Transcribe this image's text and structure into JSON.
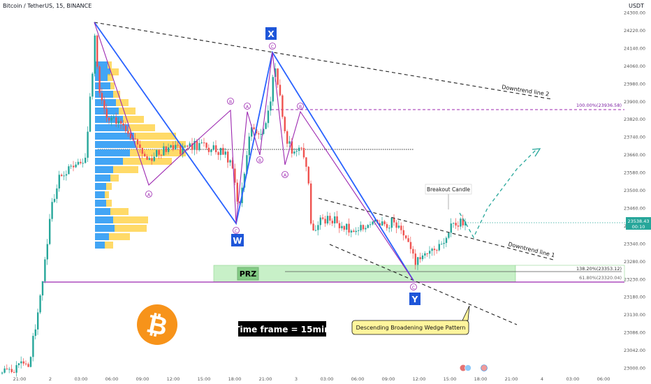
{
  "header": {
    "symbol_line": "Bitcoin / TetherUS, 15, BINANCE",
    "currency": "USDT"
  },
  "price_tag": {
    "price": "23538.43",
    "countdown": "00:10",
    "color": "#26a69a"
  },
  "colors": {
    "up": "#26a69a",
    "down": "#ef5350",
    "pattern_blue": "#2962ff",
    "pattern_purple": "#9c27b0",
    "purple_line": "#9c27b0",
    "prz_fill": "#c8f0c8",
    "profile_blue": "#42a5f5",
    "profile_orange": "#ffca28",
    "btc": "#f7931a"
  },
  "chart_data": {
    "type": "candlestick",
    "title": "Bitcoin / TetherUS, 15, BINANCE",
    "timeframe": "15",
    "y_axis": {
      "unit": "USDT",
      "ticks": [
        24300,
        24220,
        24140,
        24060,
        23980,
        23900,
        23820,
        23740,
        23660,
        23580,
        23500,
        23460,
        23400,
        23340,
        23280,
        23230,
        23180,
        23130,
        23086,
        23042,
        23000
      ],
      "tick_labels": [
        "24300.00",
        "24220.00",
        "24140.00",
        "24060.00",
        "23980.00",
        "23900.00",
        "23820.00",
        "23740.00",
        "23660.00",
        "23580.00",
        "23500.00",
        "23460.00",
        "23400.00",
        "23340.00",
        "23280.00",
        "23230.00",
        "23180.00",
        "23130.00",
        "23086.00",
        "23042.00",
        "23000.00"
      ]
    },
    "x_axis": {
      "tick_labels": [
        "21:00",
        "2",
        "03:00",
        "06:00",
        "09:00",
        "12:00",
        "15:00",
        "18:00",
        "21:00",
        "3",
        "03:00",
        "06:00",
        "09:00",
        "12:00",
        "15:00",
        "18:00",
        "21:00",
        "4",
        "03:00",
        "06:00"
      ]
    },
    "harmonic_points": [
      {
        "label": "X",
        "price": 24150
      },
      {
        "label": "W",
        "price": 23530
      },
      {
        "label": "Y",
        "price": 23330
      }
    ],
    "levels": [
      {
        "label": "100.00%(23936.58)",
        "price": 23936.58
      },
      {
        "label": "138.20%(23353.12)",
        "price": 23353.12
      },
      {
        "label": "61.80%(23320.04)",
        "price": 23320.04
      }
    ],
    "annotations": {
      "downtrend2": "Downtrend line 2",
      "downtrend1": "Downtrend line 1",
      "breakout": "Breakout Candle",
      "prz": "PRZ",
      "timeframe": "Time frame = 15min",
      "pattern": "Descending Broadening Wedge Pattern",
      "corrective_labels": [
        "A",
        "B",
        "C"
      ]
    },
    "grid": false,
    "legend": "none"
  }
}
